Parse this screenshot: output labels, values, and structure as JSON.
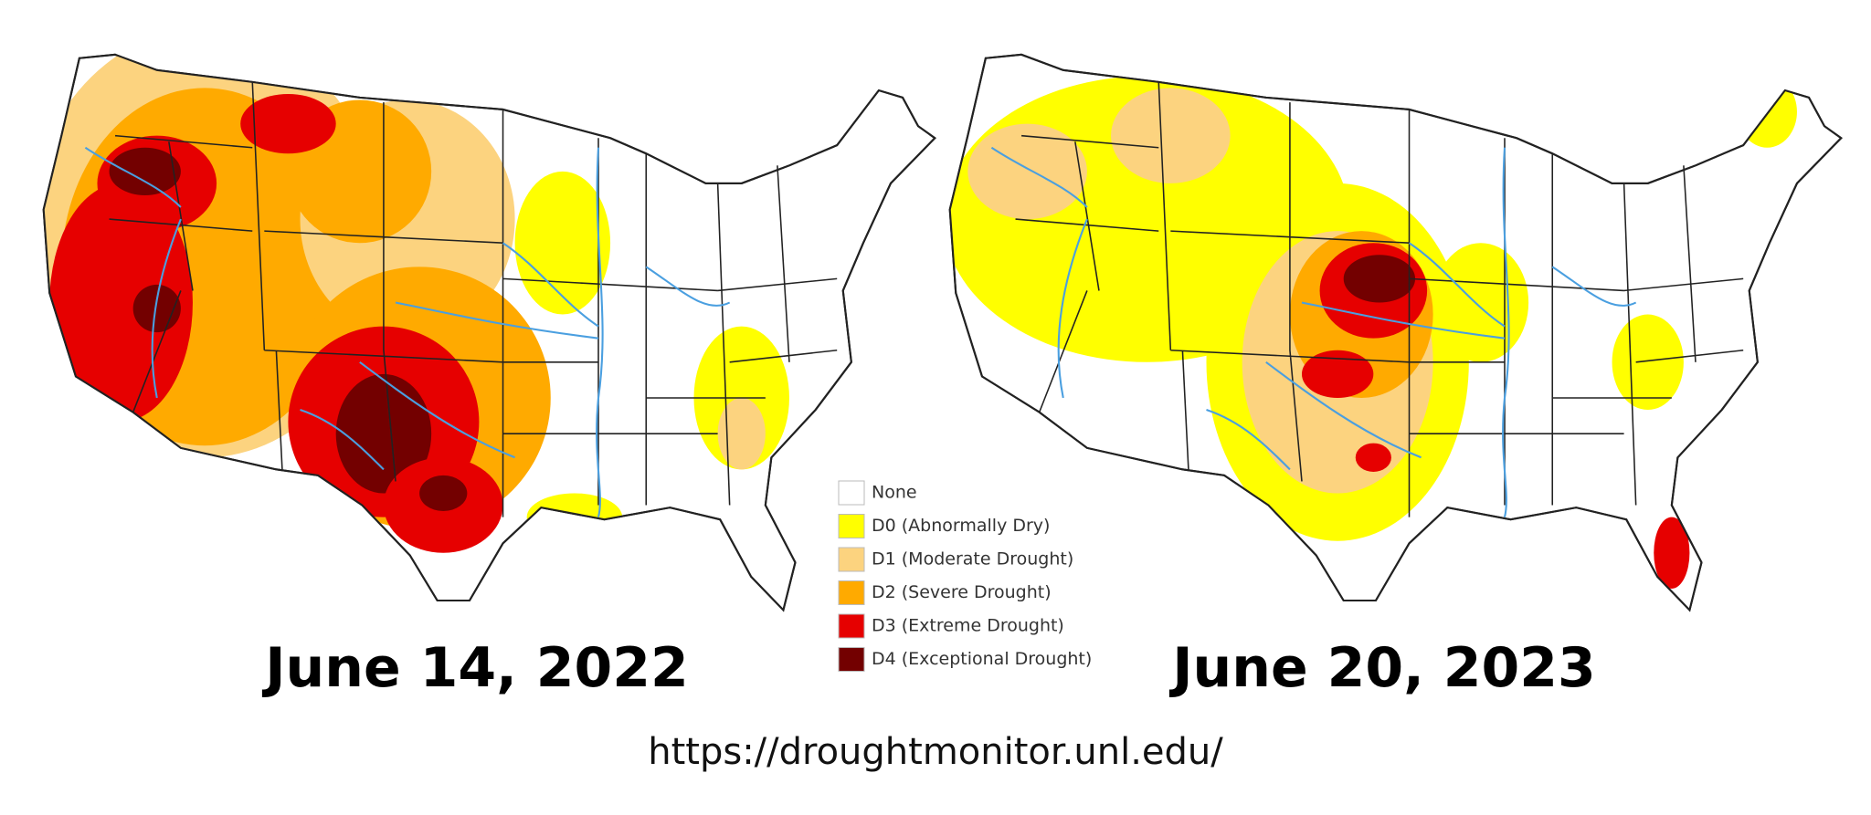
{
  "maps": [
    {
      "caption": "June 14, 2022"
    },
    {
      "caption": "June 20, 2023"
    }
  ],
  "legend": [
    {
      "label": "None",
      "color": "#ffffff"
    },
    {
      "label": "D0 (Abnormally Dry)",
      "color": "#ffff00"
    },
    {
      "label": "D1 (Moderate Drought)",
      "color": "#fcd37f"
    },
    {
      "label": "D2 (Severe Drought)",
      "color": "#ffaa00"
    },
    {
      "label": "D3 (Extreme Drought)",
      "color": "#e60000"
    },
    {
      "label": "D4 (Exceptional Drought)",
      "color": "#730000"
    }
  ],
  "source": "https://droughtmonitor.unl.edu/"
}
